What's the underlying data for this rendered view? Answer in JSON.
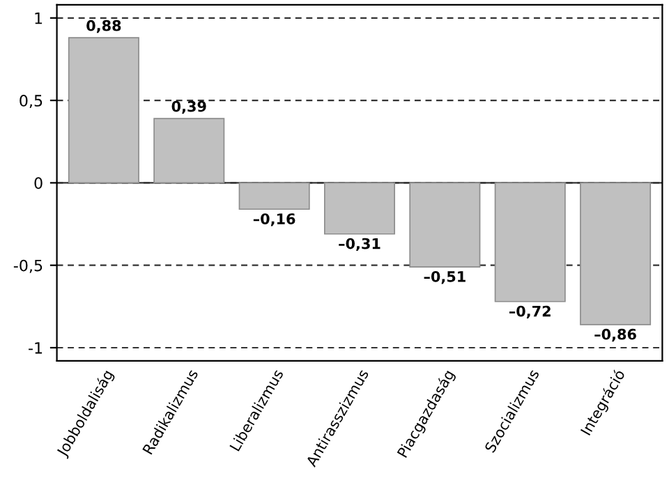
{
  "chart_data": {
    "type": "bar",
    "categories": [
      "Jobboldaliság",
      "Radikalizmus",
      "Liberalizmus",
      "Antirasszizmus",
      "Piacgazdaság",
      "Szocializmus",
      "Integráció"
    ],
    "values": [
      0.88,
      0.39,
      -0.16,
      -0.31,
      -0.51,
      -0.72,
      -0.86
    ],
    "value_labels": [
      "0,88",
      "0,39",
      "–0,16",
      "–0,31",
      "–0,51",
      "–0,72",
      "–0,86"
    ],
    "color": "#c0c0c0",
    "ylim": [
      -1.08,
      1.08
    ],
    "yticks": [
      {
        "value": -1,
        "label": "-1"
      },
      {
        "value": -0.5,
        "label": "-0,5"
      },
      0,
      {
        "value": 0.5,
        "label": "0,5"
      },
      1
    ],
    "grid": "y",
    "ref_lines": [
      {
        "axis": "y",
        "value": 0,
        "color": "#333333",
        "line_style": "solid"
      }
    ]
  }
}
